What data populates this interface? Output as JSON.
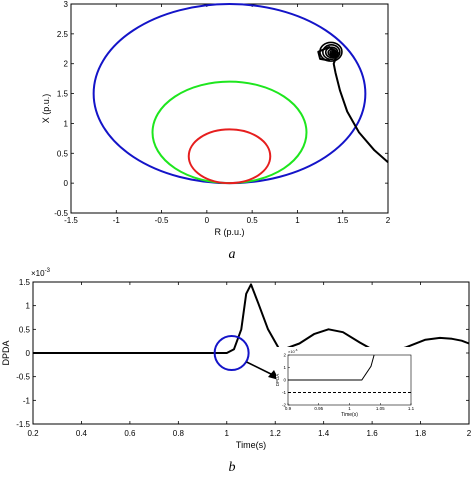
{
  "chart_data": [
    {
      "type": "line",
      "caption": "a",
      "xlabel": "R (p.u.)",
      "ylabel": "X (p.u.)",
      "xlim": [
        -1.5,
        2
      ],
      "ylim": [
        -0.5,
        3
      ],
      "xticks": [
        "-1.5",
        "-1",
        "-0.5",
        "0",
        "0.5",
        "1",
        "1.5",
        "2"
      ],
      "yticks": [
        "-0.5",
        "0",
        "0.5",
        "1",
        "1.5",
        "2",
        "2.5",
        "3"
      ],
      "circles": [
        {
          "color": "#1414c8",
          "center": [
            0.25,
            1.5
          ],
          "radius": 1.5
        },
        {
          "color": "#1ee61e",
          "center": [
            0.25,
            0.85
          ],
          "radius": 0.85
        },
        {
          "color": "#e61e1e",
          "center": [
            0.25,
            0.45
          ],
          "radius": 0.45
        }
      ],
      "trajectory": {
        "color": "#000000",
        "points": [
          [
            2.0,
            0.35
          ],
          [
            1.85,
            0.55
          ],
          [
            1.68,
            0.85
          ],
          [
            1.55,
            1.2
          ],
          [
            1.47,
            1.55
          ],
          [
            1.42,
            1.85
          ],
          [
            1.4,
            2.0
          ],
          [
            1.42,
            2.08
          ],
          [
            1.45,
            2.18
          ],
          [
            1.35,
            2.28
          ],
          [
            1.23,
            2.2
          ],
          [
            1.25,
            2.08
          ],
          [
            1.36,
            2.05
          ]
        ],
        "spiral_center": [
          1.37,
          2.2
        ]
      }
    },
    {
      "type": "line",
      "caption": "b",
      "xlabel": "Time(s)",
      "ylabel": "DPDA",
      "exponent_label": "×10",
      "exponent_power": "-3",
      "xlim": [
        0.2,
        2
      ],
      "ylim": [
        -1.5,
        1.5
      ],
      "xticks": [
        "0.2",
        "0.4",
        "0.6",
        "0.8",
        "1",
        "1.2",
        "1.4",
        "1.6",
        "1.8",
        "2"
      ],
      "yticks": [
        "-1.5",
        "-1",
        "-0.5",
        "0",
        "0.5",
        "1",
        "1.5"
      ],
      "series": [
        {
          "color": "#000000",
          "x": [
            0.2,
            1.0,
            1.03,
            1.06,
            1.08,
            1.1,
            1.13,
            1.17,
            1.22,
            1.3,
            1.36,
            1.42,
            1.48,
            1.55,
            1.62,
            1.68,
            1.74,
            1.82,
            1.88,
            1.93,
            1.97,
            2.0
          ],
          "y": [
            0.0,
            0.0,
            0.08,
            0.5,
            1.25,
            1.45,
            1.05,
            0.5,
            0.05,
            0.2,
            0.4,
            0.5,
            0.44,
            0.22,
            0.02,
            0.03,
            0.12,
            0.28,
            0.32,
            0.3,
            0.26,
            0.2
          ]
        }
      ],
      "highlight": {
        "color": "#1414c8",
        "center": [
          1.02,
          0.0
        ]
      },
      "inset": {
        "xlabel": "Time(s)",
        "ylabel": "DPDA",
        "exponent_label": "×10",
        "exponent_power": "-6",
        "xlim": [
          0.9,
          1.1
        ],
        "ylim": [
          -2,
          2
        ],
        "xticks": [
          "0.9",
          "0.95",
          "1",
          "1.05",
          "1.1"
        ],
        "yticks": [
          "-2",
          "-1",
          "0",
          "1",
          "2"
        ],
        "series": {
          "x": [
            0.9,
            1.02,
            1.035,
            1.04
          ],
          "y": [
            0.0,
            0.0,
            1.1,
            2.0
          ]
        },
        "dashed_level": -1.0
      }
    }
  ]
}
